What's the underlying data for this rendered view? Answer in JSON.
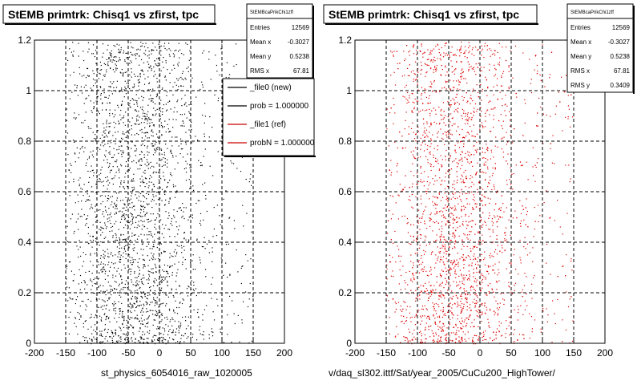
{
  "chart_data": [
    {
      "type": "scatter",
      "title": "StEMB primtrk: Chisq1 vs zfirst, tpc",
      "xlabel": "st_physics_6054016_raw_1020005",
      "ylabel": "",
      "xlim": [
        -200,
        200
      ],
      "ylim": [
        0,
        1.2
      ],
      "x_ticks": [
        "-200",
        "-150",
        "-100",
        "-50",
        "0",
        "50",
        "100",
        "150",
        "200"
      ],
      "y_ticks": [
        "0",
        "0.2",
        "0.4",
        "0.6",
        "0.8",
        "1",
        "1.2"
      ],
      "grid": true,
      "marker_color": "#000000",
      "stats_box": {
        "header": "StEMBcaPrikChi1zff",
        "rows": [
          {
            "label": "Entries",
            "value": "12569"
          },
          {
            "label": "Mean x",
            "value": "-0.3027"
          },
          {
            "label": "Mean y",
            "value": "0.5238"
          },
          {
            "label": "RMS x",
            "value": "67.81"
          }
        ]
      },
      "legend": {
        "placement": "top-right",
        "entries": [
          {
            "label": "_file0 (new)",
            "color": "#000000"
          },
          {
            "label": "prob = 1.000000",
            "color": "#000000"
          },
          {
            "label": "_file1 (ref)",
            "color": "#cc0000"
          },
          {
            "label": "probN = 1.000000",
            "color": "#cc0000"
          }
        ]
      },
      "x_distribution": {
        "min": -150,
        "max": 150,
        "density_center": -40,
        "density_spread": 70
      },
      "y_distribution": {
        "min": 0,
        "max": 1.2,
        "uniform": true
      }
    },
    {
      "type": "scatter",
      "title": "StEMB primtrk: Chisq1 vs zfirst, tpc",
      "xlabel": "v/daq_sl302.ittf/Sat/year_2005/CuCu200_HighTower/",
      "ylabel": "",
      "xlim": [
        -200,
        200
      ],
      "ylim": [
        0,
        1.2
      ],
      "x_ticks": [
        "-200",
        "-150",
        "-100",
        "-50",
        "0",
        "50",
        "100",
        "150",
        "200"
      ],
      "y_ticks": [
        "0",
        "0.2",
        "0.4",
        "0.6",
        "0.8",
        "1",
        "1.2"
      ],
      "grid": true,
      "marker_color": "#dd0000",
      "stats_box": {
        "header": "StEMBcaPrikChi1zff",
        "rows": [
          {
            "label": "Entries",
            "value": "12569"
          },
          {
            "label": "Mean x",
            "value": "-0.3027"
          },
          {
            "label": "Mean y",
            "value": "0.5238"
          },
          {
            "label": "RMS x",
            "value": "67.81"
          },
          {
            "label": "RMS y",
            "value": "0.3409"
          }
        ]
      },
      "x_distribution": {
        "min": -150,
        "max": 150,
        "density_center": -40,
        "density_spread": 70
      },
      "y_distribution": {
        "min": 0,
        "max": 1.2,
        "uniform": true
      }
    }
  ]
}
